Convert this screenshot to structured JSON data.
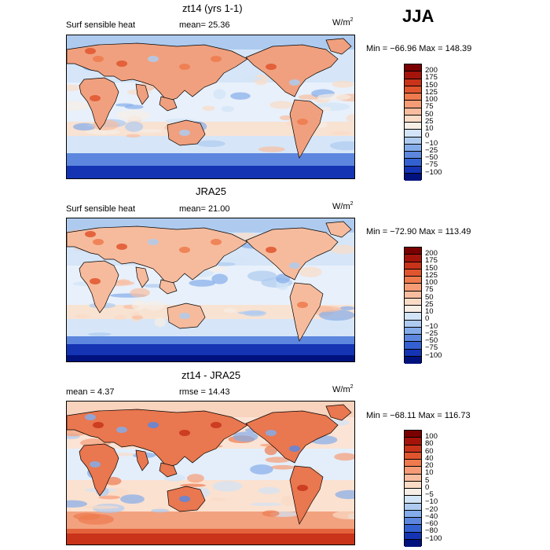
{
  "figure": {
    "season": "JJA",
    "units": "W/m",
    "units_exp": "2"
  },
  "panels": [
    {
      "title": "zt14 (yrs 1-1)",
      "left_label": "Surf sensible heat",
      "right_label": "mean=  25.36",
      "minmax": "Min = −66.96  Max = 148.39",
      "colorbar": {
        "labels": [
          "200",
          "175",
          "150",
          "125",
          "100",
          "75",
          "50",
          "25",
          "10",
          "0",
          "−10",
          "−25",
          "−50",
          "−75",
          "−100"
        ],
        "colors": [
          "#7a0000",
          "#a4140b",
          "#c8331a",
          "#e0552e",
          "#ee7a4e",
          "#f59c76",
          "#f8bd9f",
          "#fadbc6",
          "#f7eee6",
          "#d2e4f6",
          "#aecbef",
          "#84acea",
          "#5d87de",
          "#3461d1",
          "#1434b4",
          "#00127e"
        ]
      },
      "map": {
        "palette": "warm-land-cool-south"
      }
    },
    {
      "title": "JRA25",
      "left_label": "Surf sensible heat",
      "right_label": "mean=  21.00",
      "minmax": "Min = −72.90  Max = 113.49",
      "colorbar": {
        "labels": [
          "200",
          "175",
          "150",
          "125",
          "100",
          "75",
          "50",
          "25",
          "10",
          "0",
          "−10",
          "−25",
          "−50",
          "−75",
          "−100"
        ],
        "colors": [
          "#7a0000",
          "#a4140b",
          "#c8331a",
          "#e0552e",
          "#ee7a4e",
          "#f59c76",
          "#f8bd9f",
          "#fadbc6",
          "#f7eee6",
          "#d2e4f6",
          "#aecbef",
          "#84acea",
          "#5d87de",
          "#3461d1",
          "#1434b4",
          "#00127e"
        ]
      },
      "map": {
        "palette": "warm-land-cool-south"
      }
    },
    {
      "title": "zt14 - JRA25",
      "left_label": "mean =    4.37",
      "right_label": "rmse =   14.43",
      "minmax": "Min = −68.11  Max = 116.73",
      "colorbar": {
        "labels": [
          "100",
          "80",
          "60",
          "40",
          "20",
          "10",
          "5",
          "0",
          "−5",
          "−10",
          "−20",
          "−40",
          "−60",
          "−80",
          "−100"
        ],
        "colors": [
          "#7a0000",
          "#a4140b",
          "#c8331a",
          "#e0552e",
          "#ee7a4e",
          "#f59c76",
          "#f8bd9f",
          "#fadbc6",
          "#f7eee6",
          "#d2e4f6",
          "#aecbef",
          "#84acea",
          "#5d87de",
          "#3461d1",
          "#1434b4",
          "#00127e"
        ]
      },
      "map": {
        "palette": "difference"
      }
    }
  ]
}
